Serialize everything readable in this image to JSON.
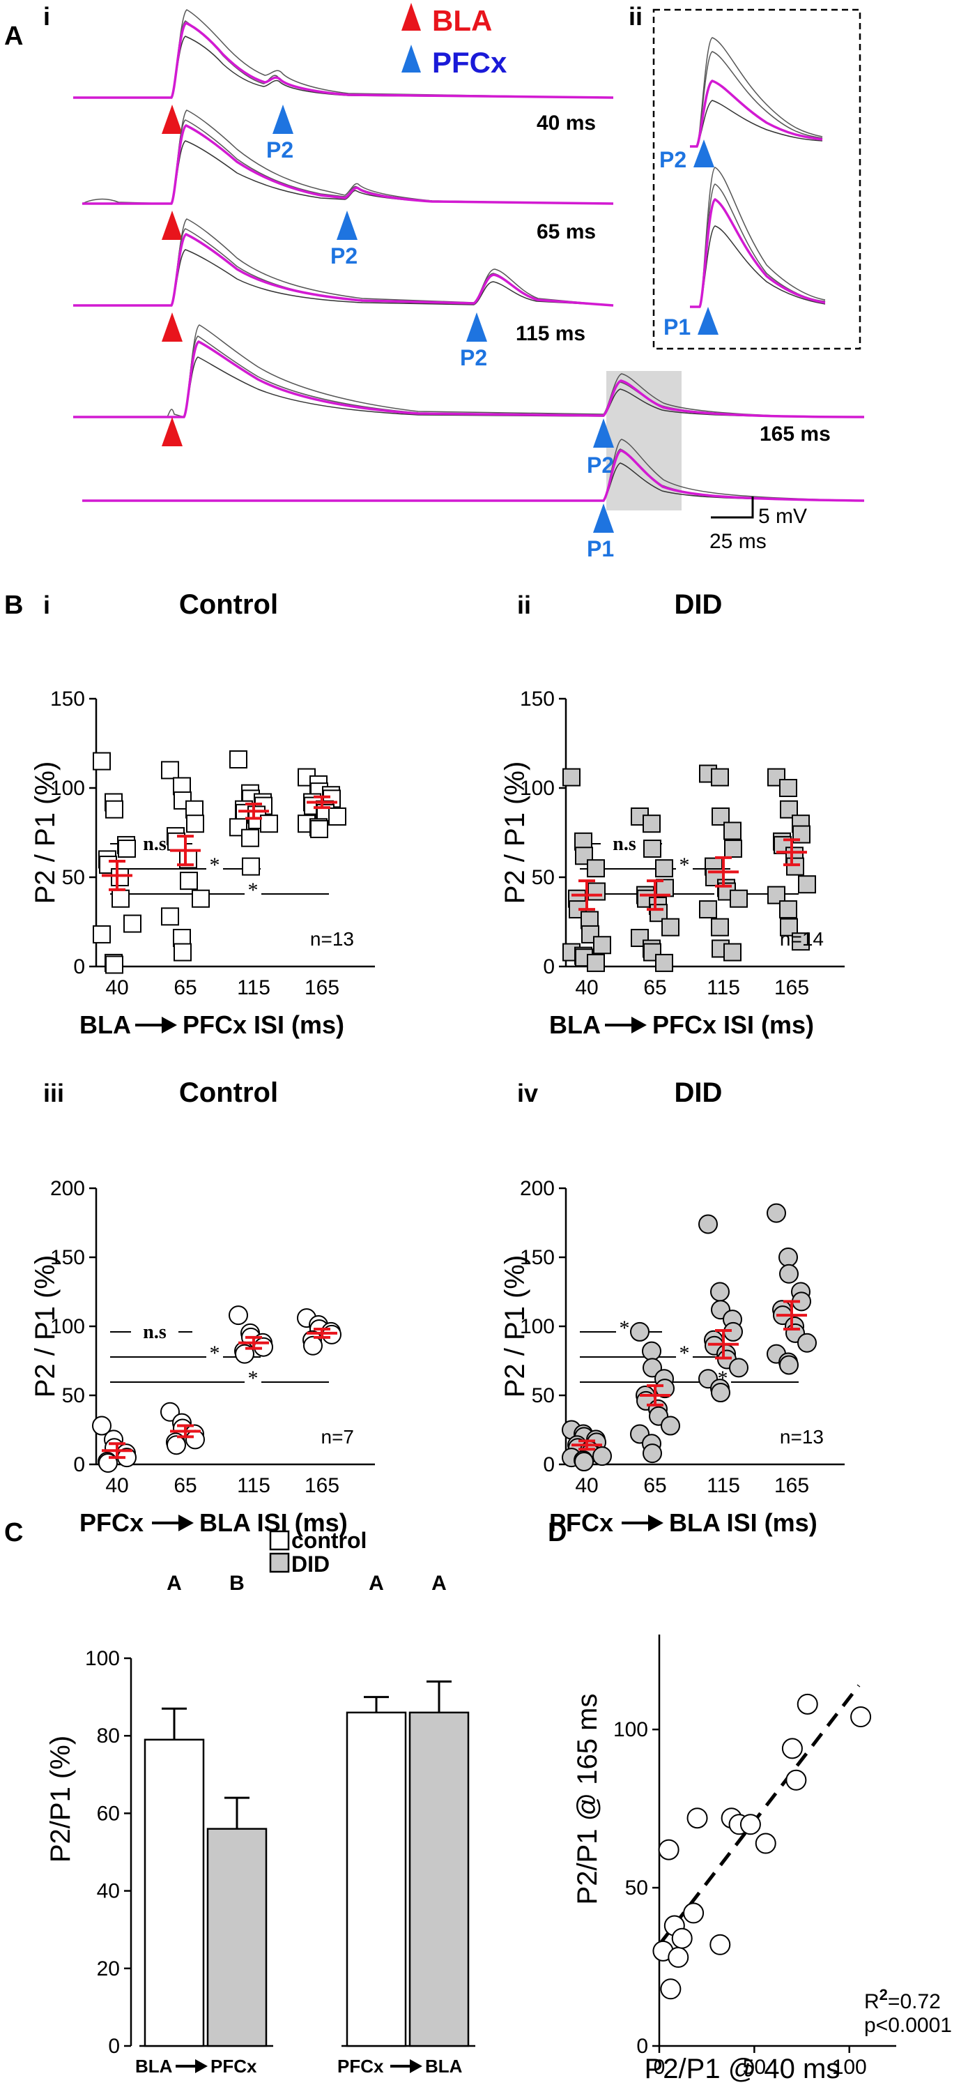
{
  "panel_labels": {
    "A": "A",
    "B": "B",
    "C": "C",
    "D": "D"
  },
  "panel_A": {
    "sub_i": "i",
    "sub_ii": "ii",
    "legend": {
      "bla": "BLA",
      "pfcx": "PFCx"
    },
    "traces": [
      {
        "isi_label": "40 ms",
        "p2_label": "P2"
      },
      {
        "isi_label": "65 ms",
        "p2_label": "P2"
      },
      {
        "isi_label": "115 ms",
        "p2_label": "P2"
      },
      {
        "isi_label": "165 ms",
        "p2_label": "P2",
        "p1_label": "P1"
      }
    ],
    "inset_p2": "P2",
    "inset_p1": "P1",
    "scale_time": "25 ms",
    "scale_voltage": "5 mV",
    "colors": {
      "bla": "#e8141c",
      "pfcx": "#1e74e0",
      "mean": "#d21ad2"
    }
  },
  "chart_data": [
    {
      "id": "B_i",
      "sub": "i",
      "type": "scatter",
      "title": "Control",
      "ylabel": "P2 / P1 (%)",
      "xlabel": "BLA→ PFCx ISI (ms)",
      "xlabel_left": "BLA",
      "xlabel_right": "PFCx ISI (ms)",
      "categories": [
        "40",
        "65",
        "115",
        "165"
      ],
      "ylim": [
        0,
        150
      ],
      "yticks": [
        "0",
        "50",
        "100",
        "150"
      ],
      "marker": "square",
      "fill": "#ffffff",
      "n_label": "n=13",
      "sig_labels": [
        "n.s",
        "*",
        "*"
      ],
      "points": [
        [
          115,
          92,
          88,
          68,
          66,
          60,
          57,
          50,
          38,
          24,
          18,
          2,
          1
        ],
        [
          110,
          101,
          93,
          88,
          80,
          73,
          70,
          60,
          48,
          38,
          28,
          16,
          8
        ],
        [
          116,
          97,
          94,
          92,
          90,
          88,
          86,
          85,
          82,
          80,
          78,
          72,
          56
        ],
        [
          106,
          102,
          98,
          96,
          94,
          92,
          90,
          88,
          86,
          84,
          80,
          78,
          77
        ]
      ],
      "mean": [
        51,
        65,
        87,
        92
      ],
      "sem": [
        8,
        8,
        4,
        3
      ]
    },
    {
      "id": "B_ii",
      "sub": "ii",
      "type": "scatter",
      "title": "DID",
      "ylabel": "P2 / P1 (%)",
      "xlabel": "BLA→ PFCx ISI (ms)",
      "xlabel_left": "BLA",
      "xlabel_right": "PFCx ISI (ms)",
      "categories": [
        "40",
        "65",
        "115",
        "165"
      ],
      "ylim": [
        0,
        150
      ],
      "yticks": [
        "0",
        "50",
        "100",
        "150"
      ],
      "marker": "square",
      "fill": "#c8c8c8",
      "n_label": "n=14",
      "sig_labels": [
        "n.s",
        "*",
        "*"
      ],
      "points": [
        [
          106,
          70,
          62,
          55,
          42,
          38,
          32,
          26,
          18,
          12,
          8,
          6,
          5,
          2
        ],
        [
          84,
          80,
          66,
          55,
          44,
          40,
          38,
          34,
          30,
          22,
          16,
          10,
          8,
          2
        ],
        [
          108,
          106,
          84,
          76,
          66,
          56,
          50,
          44,
          42,
          38,
          32,
          22,
          10,
          8
        ],
        [
          106,
          100,
          88,
          80,
          74,
          70,
          68,
          62,
          56,
          46,
          40,
          32,
          22,
          14
        ]
      ],
      "mean": [
        40,
        40,
        53,
        64
      ],
      "sem": [
        8,
        8,
        8,
        7
      ]
    },
    {
      "id": "B_iii",
      "sub": "iii",
      "type": "scatter",
      "title": "Control",
      "ylabel": "P2 / P1 (%)",
      "xlabel": "PFCx→ BLA ISI (ms)",
      "xlabel_left": "PFCx",
      "xlabel_right": "BLA ISI (ms)",
      "categories": [
        "40",
        "65",
        "115",
        "165"
      ],
      "ylim": [
        0,
        200
      ],
      "yticks": [
        "0",
        "50",
        "100",
        "150",
        "200"
      ],
      "marker": "circle",
      "fill": "#ffffff",
      "n_label": "n=7",
      "sig_labels": [
        "n.s",
        "*",
        "*"
      ],
      "points": [
        [
          28,
          18,
          12,
          8,
          5,
          2,
          1
        ],
        [
          38,
          30,
          26,
          22,
          18,
          16,
          14
        ],
        [
          108,
          95,
          92,
          88,
          85,
          82,
          80
        ],
        [
          106,
          101,
          98,
          96,
          94,
          90,
          86
        ]
      ],
      "mean": [
        10,
        24,
        88,
        95
      ],
      "sem": [
        5,
        4,
        4,
        3
      ]
    },
    {
      "id": "B_iv",
      "sub": "iv",
      "type": "scatter",
      "title": "DID",
      "ylabel": "P2 / P1 (%)",
      "xlabel": "PFCx→ BLA ISI (ms)",
      "xlabel_left": "PFCx",
      "xlabel_right": "BLA ISI (ms)",
      "categories": [
        "40",
        "65",
        "115",
        "165"
      ],
      "ylim": [
        0,
        200
      ],
      "yticks": [
        "0",
        "50",
        "100",
        "150",
        "200"
      ],
      "marker": "circle",
      "fill": "#c8c8c8",
      "n_label": "n=13",
      "sig_labels": [
        "*",
        "*",
        "*"
      ],
      "points": [
        [
          25,
          22,
          20,
          18,
          16,
          14,
          12,
          10,
          8,
          6,
          5,
          3,
          2
        ],
        [
          96,
          82,
          70,
          62,
          55,
          50,
          46,
          40,
          35,
          28,
          22,
          15,
          8
        ],
        [
          174,
          125,
          112,
          105,
          96,
          90,
          86,
          80,
          76,
          70,
          62,
          55,
          52
        ],
        [
          182,
          150,
          138,
          125,
          118,
          112,
          108,
          100,
          95,
          88,
          80,
          74,
          72
        ]
      ],
      "mean": [
        14,
        50,
        87,
        108
      ],
      "sem": [
        3,
        7,
        10,
        10
      ]
    },
    {
      "id": "C",
      "type": "bar",
      "ylabel": "P2/P1 (%)",
      "ylim": [
        0,
        100
      ],
      "yticks": [
        "0",
        "20",
        "40",
        "60",
        "80",
        "100"
      ],
      "legend": [
        "control",
        "DID"
      ],
      "groups": [
        {
          "left": "BLA",
          "right": "PFCx",
          "values": [
            79,
            56
          ],
          "errors": [
            8,
            8
          ],
          "letters": [
            "A",
            "B"
          ]
        },
        {
          "left": "PFCx",
          "right": "BLA",
          "values": [
            86,
            86
          ],
          "errors": [
            4,
            8
          ],
          "letters": [
            "A",
            "A"
          ]
        }
      ],
      "colors": {
        "control": "#ffffff",
        "DID": "#c8c8c8"
      }
    },
    {
      "id": "D",
      "type": "scatter",
      "xlabel": "P2/P1 @ 40 ms",
      "ylabel": "P2/P1 @ 165 ms",
      "xlim": [
        0,
        120
      ],
      "ylim": [
        0,
        130
      ],
      "xticks": [
        "0",
        "50",
        "100"
      ],
      "yticks": [
        "0",
        "50",
        "100"
      ],
      "x": [
        2,
        5,
        6,
        8,
        10,
        12,
        18,
        20,
        32,
        38,
        42,
        48,
        56,
        70,
        72,
        78,
        106
      ],
      "y": [
        30,
        62,
        18,
        38,
        28,
        34,
        42,
        72,
        32,
        72,
        70,
        70,
        64,
        94,
        84,
        108,
        104
      ],
      "fit": {
        "slope": 0.78,
        "intercept": 32
      },
      "r2_label": "R",
      "r2_sup": "2",
      "r2_value": "=0.72",
      "p_label": "p<0.0001"
    }
  ]
}
